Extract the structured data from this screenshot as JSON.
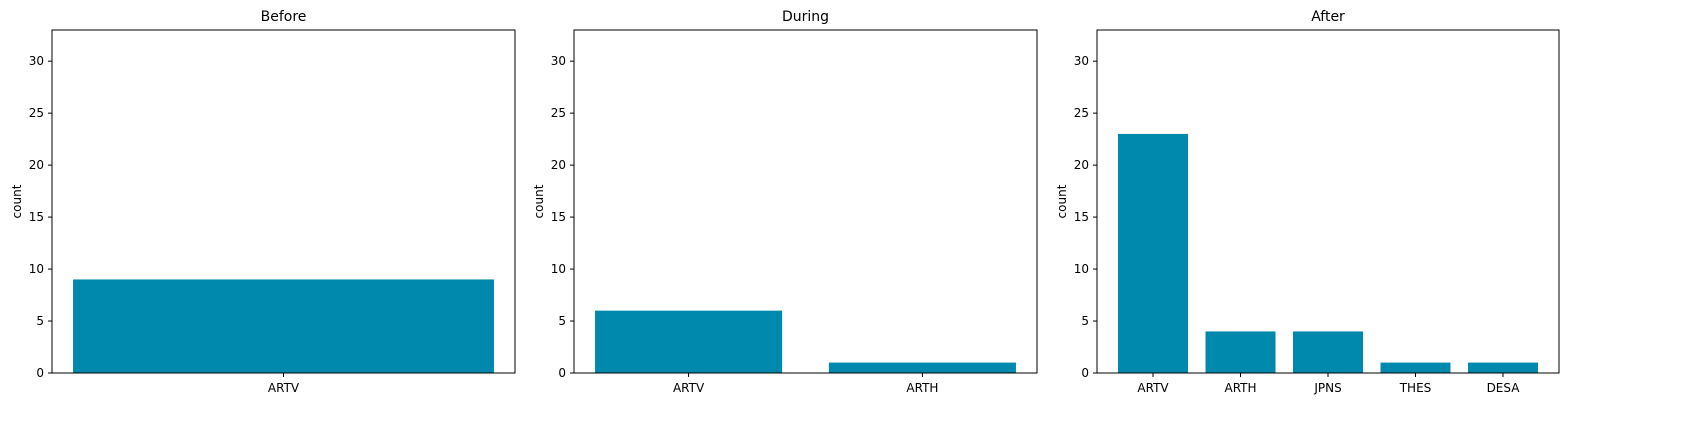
{
  "chart_data": [
    {
      "type": "bar",
      "title": "Before",
      "xlabel": "",
      "ylabel": "count",
      "categories": [
        "ARTV"
      ],
      "values": [
        9
      ],
      "ylim": [
        0,
        33
      ],
      "yticks": [
        0,
        5,
        10,
        15,
        20,
        25,
        30
      ],
      "grid": false,
      "color": "#0088ad"
    },
    {
      "type": "bar",
      "title": "During",
      "xlabel": "",
      "ylabel": "count",
      "categories": [
        "ARTV",
        "ARTH"
      ],
      "values": [
        6,
        1
      ],
      "ylim": [
        0,
        33
      ],
      "yticks": [
        0,
        5,
        10,
        15,
        20,
        25,
        30
      ],
      "grid": false,
      "color": "#0088ad"
    },
    {
      "type": "bar",
      "title": "After",
      "xlabel": "",
      "ylabel": "count",
      "categories": [
        "ARTV",
        "ARTH",
        "JPNS",
        "THES",
        "DESA"
      ],
      "values": [
        23,
        4,
        4,
        1,
        1
      ],
      "ylim": [
        0,
        33
      ],
      "yticks": [
        0,
        5,
        10,
        15,
        20,
        25,
        30
      ],
      "grid": false,
      "color": "#0088ad"
    }
  ]
}
